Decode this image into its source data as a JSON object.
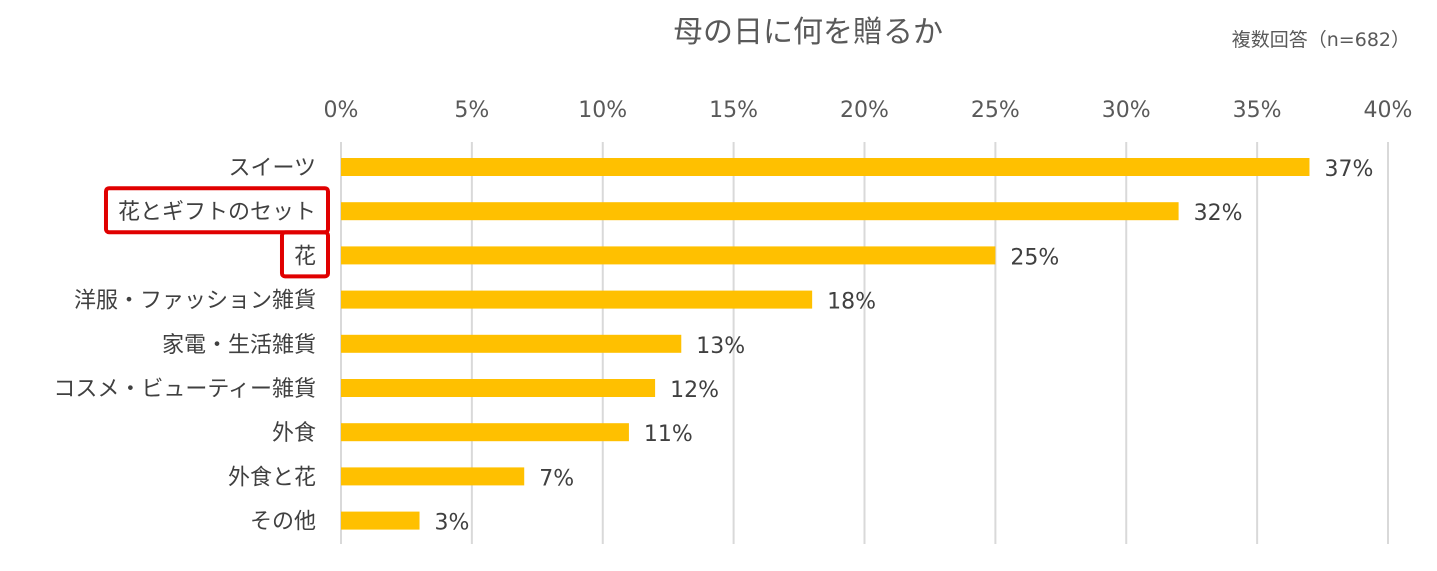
{
  "chart_data": {
    "type": "bar",
    "orientation": "horizontal",
    "title": "母の日に何を贈るか",
    "subtitle": "複数回答（n=682）",
    "xlabel": "",
    "ylabel": "",
    "xlim": [
      0,
      40
    ],
    "x_ticks": [
      "0%",
      "5%",
      "10%",
      "15%",
      "20%",
      "25%",
      "30%",
      "35%",
      "40%"
    ],
    "x_tick_values": [
      0,
      5,
      10,
      15,
      20,
      25,
      30,
      35,
      40
    ],
    "grid": true,
    "legend": "none",
    "bar_color": "#FFC000",
    "highlight_color": "#E00000",
    "categories": [
      "スイーツ",
      "花とギフトのセット",
      "花",
      "洋服・ファッション雑貨",
      "家電・生活雑貨",
      "コスメ・ビューティー雑貨",
      "外食",
      "外食と花",
      "その他"
    ],
    "values": [
      37,
      32,
      25,
      18,
      13,
      12,
      11,
      7,
      3
    ],
    "data_labels": [
      "37%",
      "32%",
      "25%",
      "18%",
      "13%",
      "12%",
      "11%",
      "7%",
      "3%"
    ],
    "highlighted_categories": [
      "花とギフトのセット",
      "花"
    ]
  }
}
